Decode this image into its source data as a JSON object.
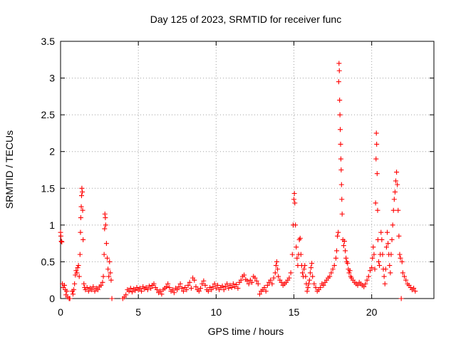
{
  "chart_data": {
    "type": "scatter",
    "title": "Day 125 of 2023, SRMTID for receiver func",
    "xlabel": "GPS time / hours",
    "ylabel": "SRMTID / TECUs",
    "xlim": [
      0,
      24
    ],
    "ylim": [
      0,
      3.5
    ],
    "x_ticks": [
      0,
      5,
      10,
      15,
      20
    ],
    "x_tick_labels": [
      "0",
      "5",
      "10",
      "15",
      "20"
    ],
    "y_ticks": [
      0,
      0.5,
      1,
      1.5,
      2,
      2.5,
      3,
      3.5
    ],
    "y_tick_labels": [
      "0",
      "0.5",
      "1",
      "1.5",
      "2",
      "2.5",
      "3",
      "3.5"
    ],
    "grid": true,
    "marker": "+",
    "color": "#ff0000",
    "series": [
      {
        "name": "SRMTID",
        "points": [
          [
            0.0,
            0.9
          ],
          [
            0.02,
            0.85
          ],
          [
            0.05,
            0.78
          ],
          [
            0.08,
            0.77
          ],
          [
            0.12,
            0.2
          ],
          [
            0.18,
            0.15
          ],
          [
            0.25,
            0.18
          ],
          [
            0.3,
            0.12
          ],
          [
            0.35,
            0.05
          ],
          [
            0.4,
            0.1
          ],
          [
            0.45,
            0.02
          ],
          [
            0.55,
            0.0
          ],
          [
            0.6,
            0.0
          ],
          [
            0.75,
            0.1
          ],
          [
            0.8,
            0.06
          ],
          [
            0.85,
            0.12
          ],
          [
            0.9,
            0.2
          ],
          [
            0.95,
            0.32
          ],
          [
            1.0,
            0.38
          ],
          [
            1.05,
            0.35
          ],
          [
            1.1,
            0.42
          ],
          [
            1.15,
            0.45
          ],
          [
            1.2,
            0.3
          ],
          [
            1.25,
            0.6
          ],
          [
            1.28,
            0.9
          ],
          [
            1.3,
            1.1
          ],
          [
            1.33,
            1.25
          ],
          [
            1.35,
            1.4
          ],
          [
            1.37,
            1.5
          ],
          [
            1.4,
            1.45
          ],
          [
            1.42,
            1.2
          ],
          [
            1.45,
            0.8
          ],
          [
            1.5,
            0.2
          ],
          [
            1.55,
            0.15
          ],
          [
            1.6,
            0.12
          ],
          [
            1.7,
            0.15
          ],
          [
            1.8,
            0.1
          ],
          [
            1.9,
            0.14
          ],
          [
            2.0,
            0.12
          ],
          [
            2.1,
            0.16
          ],
          [
            2.2,
            0.1
          ],
          [
            2.3,
            0.14
          ],
          [
            2.4,
            0.12
          ],
          [
            2.5,
            0.16
          ],
          [
            2.6,
            0.18
          ],
          [
            2.7,
            0.22
          ],
          [
            2.75,
            0.3
          ],
          [
            2.8,
            0.6
          ],
          [
            2.83,
            0.95
          ],
          [
            2.85,
            1.15
          ],
          [
            2.88,
            1.1
          ],
          [
            2.9,
            1.0
          ],
          [
            2.95,
            0.75
          ],
          [
            3.0,
            0.55
          ],
          [
            3.05,
            0.4
          ],
          [
            3.1,
            0.3
          ],
          [
            3.15,
            0.5
          ],
          [
            3.2,
            0.35
          ],
          [
            3.25,
            0.25
          ],
          [
            3.3,
            0.0
          ],
          [
            4.0,
            0.0
          ],
          [
            4.1,
            0.02
          ],
          [
            4.2,
            0.05
          ],
          [
            4.3,
            0.12
          ],
          [
            4.4,
            0.1
          ],
          [
            4.5,
            0.14
          ],
          [
            4.6,
            0.09
          ],
          [
            4.7,
            0.13
          ],
          [
            4.8,
            0.11
          ],
          [
            4.9,
            0.15
          ],
          [
            5.0,
            0.12
          ],
          [
            5.1,
            0.14
          ],
          [
            5.2,
            0.1
          ],
          [
            5.3,
            0.16
          ],
          [
            5.4,
            0.13
          ],
          [
            5.5,
            0.15
          ],
          [
            5.6,
            0.12
          ],
          [
            5.7,
            0.17
          ],
          [
            5.8,
            0.14
          ],
          [
            5.9,
            0.18
          ],
          [
            6.0,
            0.2
          ],
          [
            6.1,
            0.15
          ],
          [
            6.2,
            0.12
          ],
          [
            6.3,
            0.08
          ],
          [
            6.4,
            0.1
          ],
          [
            6.5,
            0.06
          ],
          [
            6.6,
            0.12
          ],
          [
            6.7,
            0.14
          ],
          [
            6.8,
            0.16
          ],
          [
            6.9,
            0.2
          ],
          [
            7.0,
            0.15
          ],
          [
            7.1,
            0.1
          ],
          [
            7.2,
            0.12
          ],
          [
            7.3,
            0.08
          ],
          [
            7.4,
            0.14
          ],
          [
            7.5,
            0.12
          ],
          [
            7.6,
            0.16
          ],
          [
            7.7,
            0.2
          ],
          [
            7.8,
            0.14
          ],
          [
            7.9,
            0.1
          ],
          [
            8.0,
            0.15
          ],
          [
            8.1,
            0.12
          ],
          [
            8.2,
            0.18
          ],
          [
            8.3,
            0.22
          ],
          [
            8.4,
            0.14
          ],
          [
            8.5,
            0.28
          ],
          [
            8.6,
            0.25
          ],
          [
            8.7,
            0.16
          ],
          [
            8.8,
            0.12
          ],
          [
            8.9,
            0.1
          ],
          [
            9.0,
            0.14
          ],
          [
            9.1,
            0.2
          ],
          [
            9.2,
            0.24
          ],
          [
            9.3,
            0.18
          ],
          [
            9.4,
            0.12
          ],
          [
            9.5,
            0.1
          ],
          [
            9.6,
            0.15
          ],
          [
            9.7,
            0.12
          ],
          [
            9.8,
            0.16
          ],
          [
            9.9,
            0.2
          ],
          [
            10.0,
            0.14
          ],
          [
            10.1,
            0.18
          ],
          [
            10.2,
            0.12
          ],
          [
            10.3,
            0.15
          ],
          [
            10.4,
            0.17
          ],
          [
            10.5,
            0.12
          ],
          [
            10.6,
            0.16
          ],
          [
            10.7,
            0.2
          ],
          [
            10.8,
            0.14
          ],
          [
            10.9,
            0.18
          ],
          [
            11.0,
            0.15
          ],
          [
            11.1,
            0.2
          ],
          [
            11.2,
            0.16
          ],
          [
            11.3,
            0.19
          ],
          [
            11.4,
            0.14
          ],
          [
            11.5,
            0.22
          ],
          [
            11.6,
            0.25
          ],
          [
            11.7,
            0.3
          ],
          [
            11.8,
            0.32
          ],
          [
            11.9,
            0.26
          ],
          [
            12.0,
            0.24
          ],
          [
            12.1,
            0.2
          ],
          [
            12.2,
            0.25
          ],
          [
            12.3,
            0.22
          ],
          [
            12.4,
            0.3
          ],
          [
            12.5,
            0.28
          ],
          [
            12.6,
            0.24
          ],
          [
            12.7,
            0.2
          ],
          [
            12.8,
            0.06
          ],
          [
            12.9,
            0.1
          ],
          [
            13.0,
            0.12
          ],
          [
            13.1,
            0.15
          ],
          [
            13.2,
            0.1
          ],
          [
            13.3,
            0.18
          ],
          [
            13.4,
            0.22
          ],
          [
            13.5,
            0.25
          ],
          [
            13.6,
            0.2
          ],
          [
            13.7,
            0.28
          ],
          [
            13.8,
            0.35
          ],
          [
            13.85,
            0.45
          ],
          [
            13.9,
            0.5
          ],
          [
            13.95,
            0.4
          ],
          [
            14.0,
            0.3
          ],
          [
            14.1,
            0.25
          ],
          [
            14.2,
            0.22
          ],
          [
            14.3,
            0.18
          ],
          [
            14.4,
            0.2
          ],
          [
            14.5,
            0.22
          ],
          [
            14.6,
            0.25
          ],
          [
            14.7,
            0.28
          ],
          [
            14.8,
            0.35
          ],
          [
            14.9,
            0.6
          ],
          [
            14.95,
            1.0
          ],
          [
            15.0,
            1.35
          ],
          [
            15.03,
            1.43
          ],
          [
            15.06,
            1.3
          ],
          [
            15.1,
            1.0
          ],
          [
            15.15,
            0.7
          ],
          [
            15.2,
            0.55
          ],
          [
            15.25,
            0.45
          ],
          [
            15.3,
            0.6
          ],
          [
            15.35,
            0.8
          ],
          [
            15.4,
            0.82
          ],
          [
            15.45,
            0.6
          ],
          [
            15.5,
            0.45
          ],
          [
            15.55,
            0.35
          ],
          [
            15.6,
            0.3
          ],
          [
            15.65,
            0.4
          ],
          [
            15.7,
            0.45
          ],
          [
            15.75,
            0.3
          ],
          [
            15.8,
            0.2
          ],
          [
            15.85,
            0.1
          ],
          [
            15.9,
            0.15
          ],
          [
            15.95,
            0.2
          ],
          [
            16.0,
            0.25
          ],
          [
            16.05,
            0.35
          ],
          [
            16.1,
            0.42
          ],
          [
            16.15,
            0.48
          ],
          [
            16.2,
            0.3
          ],
          [
            16.3,
            0.2
          ],
          [
            16.4,
            0.15
          ],
          [
            16.5,
            0.1
          ],
          [
            16.6,
            0.12
          ],
          [
            16.7,
            0.15
          ],
          [
            16.8,
            0.2
          ],
          [
            16.9,
            0.18
          ],
          [
            17.0,
            0.22
          ],
          [
            17.1,
            0.25
          ],
          [
            17.2,
            0.28
          ],
          [
            17.3,
            0.3
          ],
          [
            17.4,
            0.35
          ],
          [
            17.5,
            0.4
          ],
          [
            17.6,
            0.45
          ],
          [
            17.7,
            0.55
          ],
          [
            17.75,
            0.65
          ],
          [
            17.8,
            0.85
          ],
          [
            17.85,
            0.9
          ],
          [
            17.88,
            2.95
          ],
          [
            17.9,
            3.2
          ],
          [
            17.92,
            3.1
          ],
          [
            17.94,
            2.7
          ],
          [
            17.96,
            2.5
          ],
          [
            17.98,
            2.3
          ],
          [
            18.0,
            2.1
          ],
          [
            18.02,
            1.9
          ],
          [
            18.04,
            1.75
          ],
          [
            18.06,
            1.55
          ],
          [
            18.08,
            1.35
          ],
          [
            18.1,
            1.15
          ],
          [
            18.15,
            0.8
          ],
          [
            18.2,
            0.72
          ],
          [
            18.25,
            0.78
          ],
          [
            18.3,
            0.65
          ],
          [
            18.35,
            0.55
          ],
          [
            18.4,
            0.5
          ],
          [
            18.45,
            0.48
          ],
          [
            18.5,
            0.4
          ],
          [
            18.55,
            0.35
          ],
          [
            18.6,
            0.38
          ],
          [
            18.65,
            0.3
          ],
          [
            18.7,
            0.28
          ],
          [
            18.8,
            0.25
          ],
          [
            18.9,
            0.22
          ],
          [
            19.0,
            0.2
          ],
          [
            19.1,
            0.18
          ],
          [
            19.2,
            0.22
          ],
          [
            19.3,
            0.2
          ],
          [
            19.4,
            0.18
          ],
          [
            19.5,
            0.16
          ],
          [
            19.6,
            0.2
          ],
          [
            19.7,
            0.25
          ],
          [
            19.8,
            0.3
          ],
          [
            19.9,
            0.38
          ],
          [
            20.0,
            0.42
          ],
          [
            20.05,
            0.55
          ],
          [
            20.1,
            0.7
          ],
          [
            20.15,
            0.6
          ],
          [
            20.2,
            0.4
          ],
          [
            20.25,
            1.3
          ],
          [
            20.28,
            1.9
          ],
          [
            20.3,
            2.25
          ],
          [
            20.32,
            2.1
          ],
          [
            20.35,
            1.7
          ],
          [
            20.38,
            1.2
          ],
          [
            20.4,
            0.8
          ],
          [
            20.45,
            0.5
          ],
          [
            20.5,
            0.45
          ],
          [
            20.55,
            0.6
          ],
          [
            20.6,
            0.9
          ],
          [
            20.65,
            0.8
          ],
          [
            20.7,
            0.6
          ],
          [
            20.75,
            0.4
          ],
          [
            20.8,
            0.3
          ],
          [
            20.85,
            0.2
          ],
          [
            20.9,
            0.4
          ],
          [
            20.95,
            0.7
          ],
          [
            21.0,
            0.9
          ],
          [
            21.05,
            0.75
          ],
          [
            21.1,
            0.6
          ],
          [
            21.15,
            0.45
          ],
          [
            21.2,
            0.35
          ],
          [
            21.25,
            0.6
          ],
          [
            21.3,
            0.8
          ],
          [
            21.35,
            1.0
          ],
          [
            21.4,
            1.2
          ],
          [
            21.45,
            1.35
          ],
          [
            21.5,
            1.45
          ],
          [
            21.55,
            1.6
          ],
          [
            21.6,
            1.72
          ],
          [
            21.65,
            1.55
          ],
          [
            21.7,
            1.2
          ],
          [
            21.75,
            0.85
          ],
          [
            21.8,
            0.6
          ],
          [
            21.85,
            0.55
          ],
          [
            21.9,
            0.0
          ],
          [
            21.95,
            0.5
          ],
          [
            22.0,
            0.35
          ],
          [
            22.1,
            0.3
          ],
          [
            22.2,
            0.25
          ],
          [
            22.3,
            0.2
          ],
          [
            22.4,
            0.18
          ],
          [
            22.5,
            0.15
          ],
          [
            22.6,
            0.12
          ],
          [
            22.7,
            0.14
          ],
          [
            22.8,
            0.1
          ]
        ]
      }
    ]
  }
}
